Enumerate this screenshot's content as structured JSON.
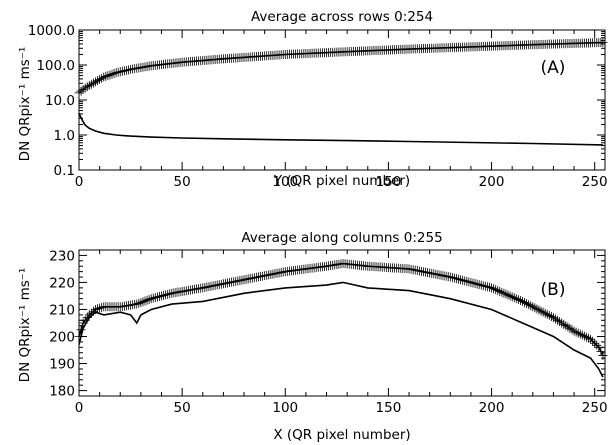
{
  "chart_data": [
    {
      "type": "line",
      "title": "Average across rows 0:254",
      "xlabel": "Y (QR pixel number)",
      "ylabel": "DN QRpix⁻¹ ms⁻¹",
      "annotation": "(A)",
      "yscale": "log",
      "xlim": [
        0,
        255
      ],
      "ylim": [
        0.1,
        1000
      ],
      "xticks": [
        "0",
        "50",
        "100",
        "150",
        "200",
        "250"
      ],
      "xtick_values": [
        0,
        50,
        100,
        150,
        200,
        250
      ],
      "yticks": [
        "0.1",
        "1.0",
        "10.0",
        "100.0",
        "1000.0"
      ],
      "ytick_values": [
        0.1,
        1,
        10,
        100,
        1000
      ],
      "grid": false,
      "series": [
        {
          "style": "line+crosses",
          "x": [
            0,
            1,
            2,
            3,
            5,
            8,
            12,
            18,
            25,
            35,
            50,
            70,
            100,
            130,
            160,
            190,
            220,
            254
          ],
          "y": [
            16,
            18,
            20,
            22,
            26,
            33,
            45,
            60,
            75,
            95,
            120,
            150,
            200,
            240,
            285,
            330,
            380,
            440
          ]
        },
        {
          "style": "line",
          "x": [
            0,
            1,
            2,
            3,
            5,
            8,
            12,
            18,
            25,
            35,
            50,
            70,
            100,
            130,
            160,
            190,
            220,
            254
          ],
          "y": [
            4.2,
            3.1,
            2.4,
            1.9,
            1.55,
            1.3,
            1.12,
            1.0,
            0.93,
            0.87,
            0.82,
            0.78,
            0.73,
            0.69,
            0.65,
            0.61,
            0.57,
            0.52
          ]
        }
      ]
    },
    {
      "type": "line",
      "title": "Average along columns 0:255",
      "xlabel": "X (QR pixel number)",
      "ylabel": "DN QRpix⁻¹ ms⁻¹",
      "annotation": "(B)",
      "xlim": [
        0,
        255
      ],
      "ylim": [
        178,
        232
      ],
      "xticks": [
        "0",
        "50",
        "100",
        "150",
        "200",
        "250"
      ],
      "xtick_values": [
        0,
        50,
        100,
        150,
        200,
        250
      ],
      "yticks": [
        "180",
        "190",
        "200",
        "210",
        "220",
        "230"
      ],
      "ytick_values": [
        180,
        190,
        200,
        210,
        220,
        230
      ],
      "grid": false,
      "series": [
        {
          "style": "line+crosses",
          "x": [
            0,
            2,
            5,
            8,
            12,
            20,
            28,
            35,
            45,
            60,
            80,
            100,
            120,
            128,
            140,
            160,
            180,
            200,
            215,
            230,
            240,
            248,
            252,
            254
          ],
          "y": [
            200,
            205,
            208,
            210,
            211,
            211,
            212,
            214,
            216,
            218,
            221,
            224,
            226,
            227,
            226,
            225,
            222,
            218,
            213,
            207,
            202,
            199,
            196,
            193
          ]
        },
        {
          "style": "line",
          "x": [
            0,
            2,
            5,
            8,
            12,
            20,
            25,
            28,
            30,
            35,
            45,
            60,
            80,
            100,
            120,
            128,
            140,
            160,
            180,
            200,
            215,
            230,
            240,
            248,
            252,
            254
          ],
          "y": [
            197,
            203,
            207,
            209,
            208,
            209,
            208,
            205,
            208,
            210,
            212,
            213,
            216,
            218,
            219,
            220,
            218,
            217,
            214,
            210,
            205,
            200,
            195,
            192,
            188,
            185
          ]
        }
      ]
    }
  ]
}
